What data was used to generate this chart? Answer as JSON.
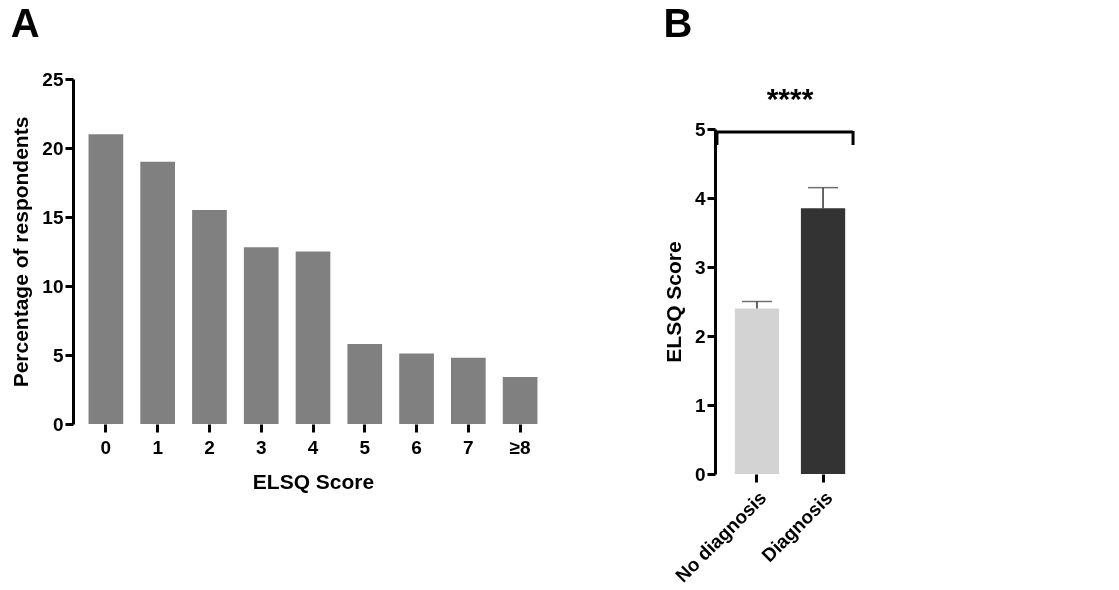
{
  "chart_data": [
    {
      "type": "bar",
      "title": "A",
      "xlabel": "ELSQ Score",
      "ylabel": "Percentage of respondents",
      "categories": [
        "0",
        "1",
        "2",
        "3",
        "4",
        "5",
        "6",
        "7",
        "≥8"
      ],
      "values": [
        21,
        19,
        15.5,
        12.8,
        12.5,
        5.8,
        5.1,
        4.8,
        3.4
      ],
      "color": "#808080",
      "ylim": [
        0,
        25
      ],
      "yticks": [
        0,
        5,
        10,
        15,
        20,
        25
      ],
      "grid": false
    },
    {
      "type": "bar",
      "title": "B",
      "ylabel": "ELSQ Score",
      "categories": [
        "No diagnosis",
        "Diagnosis"
      ],
      "values": [
        2.4,
        3.85
      ],
      "colors": [
        "#d3d3d3",
        "#333333"
      ],
      "errors": [
        [
          2.4,
          2.5
        ],
        [
          3.85,
          4.15
        ]
      ],
      "ylim": [
        0,
        5
      ],
      "yticks": [
        0,
        1,
        2,
        3,
        4,
        5
      ],
      "grid": false,
      "annotations": [
        "****"
      ]
    }
  ]
}
